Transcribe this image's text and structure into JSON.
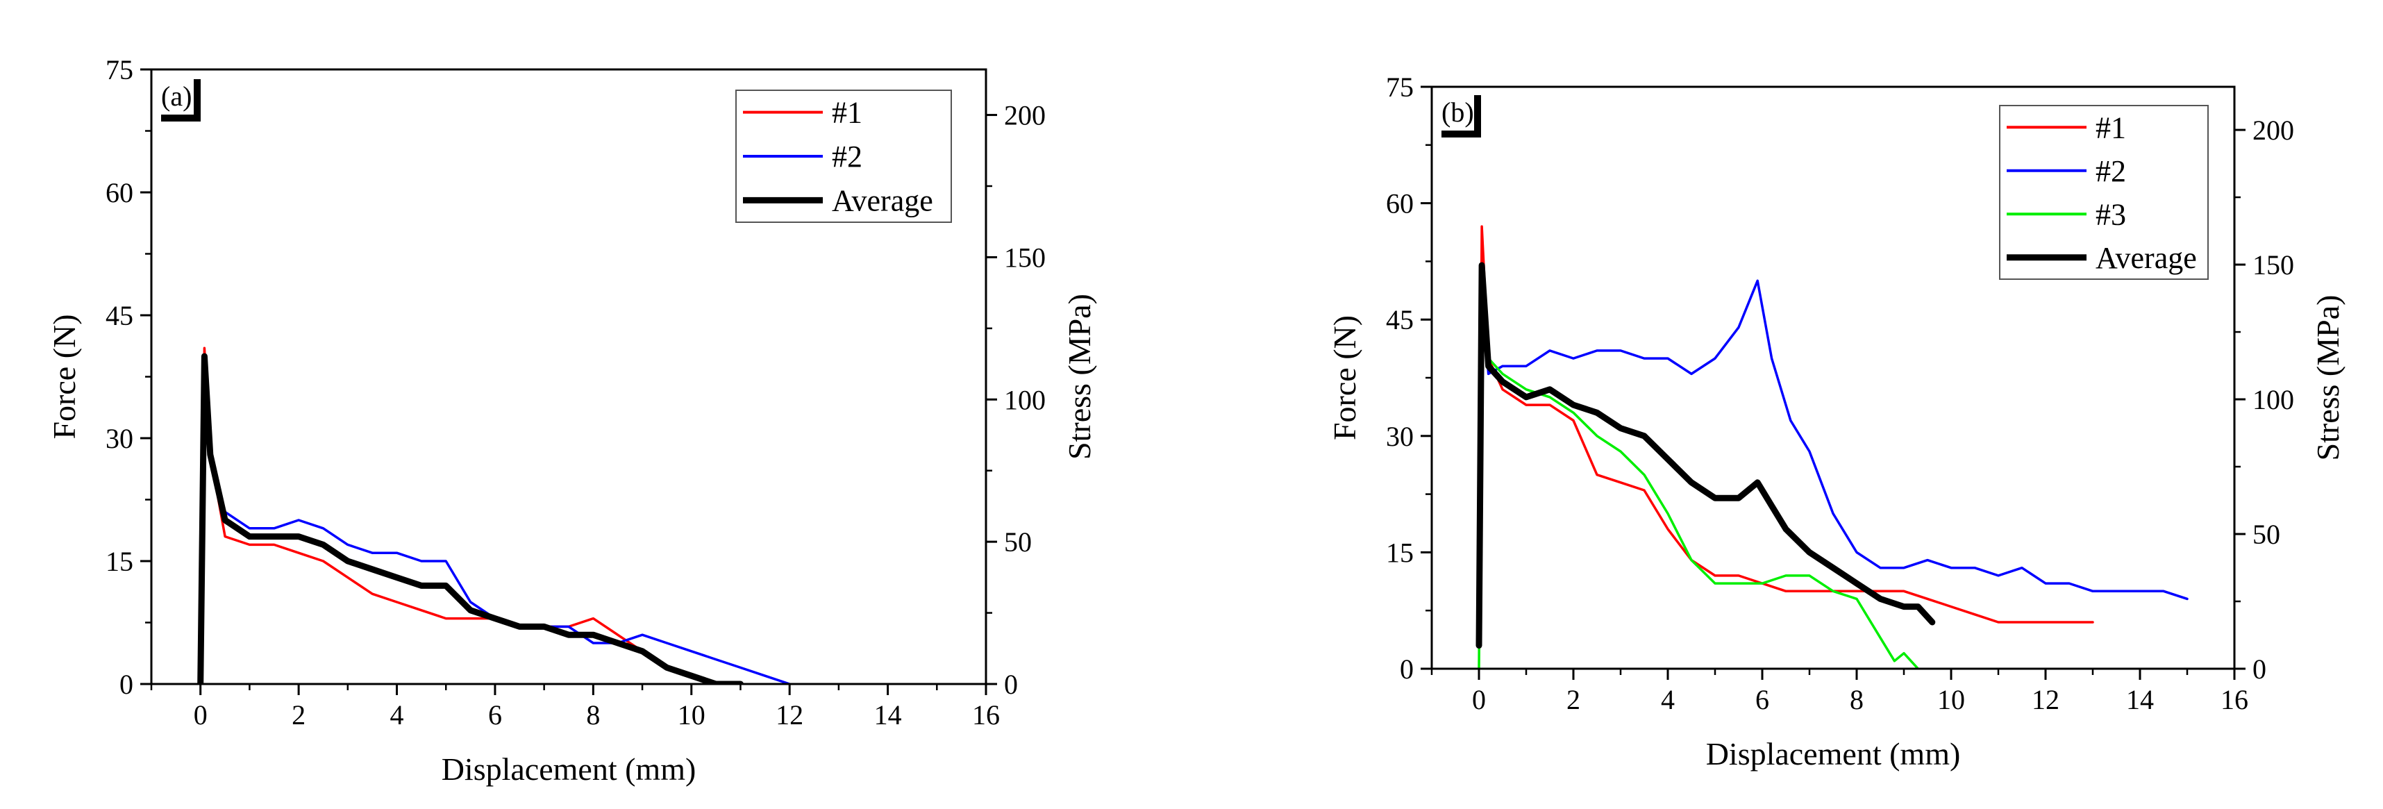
{
  "chart_data": [
    {
      "type": "line",
      "panel": "(a)",
      "xlabel": "Displacement (mm)",
      "ylabel": "Force (N)",
      "y2label": "Stress (MPa)",
      "xlim": [
        -1,
        16
      ],
      "ylim": [
        0,
        75
      ],
      "y2lim": [
        0,
        216
      ],
      "xticks": [
        0,
        2,
        4,
        6,
        8,
        10,
        12,
        14,
        16
      ],
      "yticks": [
        0,
        15,
        30,
        45,
        60,
        75
      ],
      "y2ticks": [
        0,
        50,
        100,
        150,
        200
      ],
      "legend_position": "top-right",
      "series": [
        {
          "name": "#1",
          "color": "#ff0000",
          "x": [
            0,
            0.08,
            0.2,
            0.5,
            1.0,
            1.5,
            2.0,
            2.5,
            3.0,
            3.5,
            4.0,
            4.5,
            5.0,
            5.5,
            6.0,
            6.5,
            7.0,
            7.5,
            8.0,
            8.5,
            9.0,
            9.5,
            10.0,
            10.5
          ],
          "y": [
            0,
            41,
            28,
            18,
            17,
            17,
            16,
            15,
            13,
            11,
            10,
            9,
            8,
            8,
            8,
            7,
            7,
            7,
            8,
            6,
            4,
            2,
            1,
            0
          ]
        },
        {
          "name": "#2",
          "color": "#0000ff",
          "x": [
            0,
            0.08,
            0.2,
            0.5,
            1.0,
            1.5,
            2.0,
            2.5,
            3.0,
            3.5,
            4.0,
            4.5,
            5.0,
            5.5,
            6.0,
            6.5,
            7.0,
            7.5,
            8.0,
            8.5,
            9.0,
            9.5,
            10.0,
            10.5,
            11.0,
            11.5,
            12.0
          ],
          "y": [
            0,
            40,
            27,
            21,
            19,
            19,
            20,
            19,
            17,
            16,
            16,
            15,
            15,
            10,
            8,
            7,
            7,
            7,
            5,
            5,
            6,
            5,
            4,
            3,
            2,
            1,
            0
          ]
        },
        {
          "name": "Average",
          "color": "#000000",
          "x": [
            0,
            0.08,
            0.2,
            0.5,
            1.0,
            1.5,
            2.0,
            2.5,
            3.0,
            3.5,
            4.0,
            4.5,
            5.0,
            5.5,
            6.0,
            6.5,
            7.0,
            7.5,
            8.0,
            8.5,
            9.0,
            9.5,
            10.0,
            10.5,
            11.0
          ],
          "y": [
            0,
            40,
            28,
            20,
            18,
            18,
            18,
            17,
            15,
            14,
            13,
            12,
            12,
            9,
            8,
            7,
            7,
            6,
            6,
            5,
            4,
            2,
            1,
            0,
            0
          ]
        }
      ]
    },
    {
      "type": "line",
      "panel": "(b)",
      "xlabel": "Displacement (mm)",
      "ylabel": "Force (N)",
      "y2label": "Stress (MPa)",
      "xlim": [
        -1,
        16
      ],
      "ylim": [
        0,
        75
      ],
      "y2lim": [
        0,
        216
      ],
      "xticks": [
        0,
        2,
        4,
        6,
        8,
        10,
        12,
        14,
        16
      ],
      "yticks": [
        0,
        15,
        30,
        45,
        60,
        75
      ],
      "y2ticks": [
        0,
        50,
        100,
        150,
        200
      ],
      "legend_position": "top-right",
      "series": [
        {
          "name": "#1",
          "color": "#ff0000",
          "x": [
            0,
            0.06,
            0.2,
            0.5,
            1.0,
            1.5,
            2.0,
            2.5,
            3.0,
            3.5,
            4.0,
            4.5,
            5.0,
            5.5,
            6.0,
            6.5,
            7.0,
            7.5,
            8.0,
            8.5,
            9.0,
            9.5,
            10.0,
            10.5,
            11.0,
            11.5,
            12.0,
            12.5,
            13.0
          ],
          "y": [
            3,
            57,
            40,
            36,
            34,
            34,
            32,
            25,
            24,
            23,
            18,
            14,
            12,
            12,
            11,
            10,
            10,
            10,
            10,
            10,
            10,
            9,
            8,
            7,
            6,
            6,
            6,
            6,
            6
          ]
        },
        {
          "name": "#2",
          "color": "#0000ff",
          "x": [
            0,
            0.06,
            0.2,
            0.5,
            1.0,
            1.5,
            2.0,
            2.5,
            3.0,
            3.5,
            4.0,
            4.5,
            5.0,
            5.5,
            5.9,
            6.2,
            6.6,
            7.0,
            7.5,
            8.0,
            8.5,
            9.0,
            9.5,
            10.0,
            10.5,
            11.0,
            11.5,
            12.0,
            12.5,
            13.0,
            13.5,
            14.0,
            14.5,
            15.0
          ],
          "y": [
            3,
            50,
            38,
            39,
            39,
            41,
            40,
            41,
            41,
            40,
            40,
            38,
            40,
            44,
            50,
            40,
            32,
            28,
            20,
            15,
            13,
            13,
            14,
            13,
            13,
            12,
            13,
            11,
            11,
            10,
            10,
            10,
            10,
            9
          ]
        },
        {
          "name": "#3",
          "color": "#00ee00",
          "x": [
            0,
            0.06,
            0.2,
            0.5,
            1.0,
            1.5,
            2.0,
            2.5,
            3.0,
            3.5,
            4.0,
            4.5,
            5.0,
            5.5,
            6.0,
            6.5,
            7.0,
            7.5,
            8.0,
            8.5,
            8.8,
            9.0,
            9.3
          ],
          "y": [
            0,
            50,
            40,
            38,
            36,
            35,
            33,
            30,
            28,
            25,
            20,
            14,
            11,
            11,
            11,
            12,
            12,
            10,
            9,
            4,
            1,
            2,
            0
          ]
        },
        {
          "name": "Average",
          "color": "#000000",
          "x": [
            0,
            0.06,
            0.2,
            0.5,
            1.0,
            1.5,
            2.0,
            2.5,
            3.0,
            3.5,
            4.0,
            4.5,
            5.0,
            5.5,
            5.9,
            6.2,
            6.5,
            7.0,
            7.5,
            8.0,
            8.5,
            9.0,
            9.3,
            9.6
          ],
          "y": [
            3,
            52,
            39,
            37,
            35,
            36,
            34,
            33,
            31,
            30,
            27,
            24,
            22,
            22,
            24,
            21,
            18,
            15,
            13,
            11,
            9,
            8,
            8,
            6
          ]
        }
      ]
    }
  ]
}
